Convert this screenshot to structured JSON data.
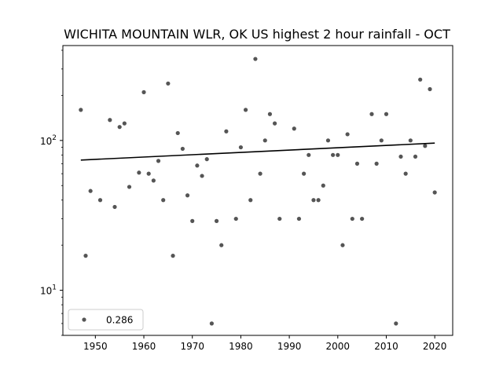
{
  "chart_data": {
    "type": "scatter",
    "title": "WICHITA MOUNTAIN WLR, OK US highest 2 hour rainfall - OCT",
    "xlabel": "",
    "ylabel": "",
    "x_ticks": [
      1950,
      1960,
      1970,
      1980,
      1990,
      2000,
      2010,
      2020
    ],
    "x_tick_labels": [
      "1950",
      "1960",
      "1970",
      "1980",
      "1990",
      "2000",
      "2010",
      "2020"
    ],
    "y_scale": "log",
    "y_ticks": [
      10,
      100
    ],
    "y_tick_labels": [
      "10^1",
      "10^2"
    ],
    "xlim": [
      1943.3,
      2023.7
    ],
    "ylim": [
      5,
      430
    ],
    "grid": false,
    "legend_position": "lower-left",
    "series": [
      {
        "name": "0.286",
        "color": "#555555",
        "x": [
          1947,
          1948,
          1949,
          1951,
          1953,
          1954,
          1955,
          1956,
          1957,
          1959,
          1960,
          1961,
          1962,
          1963,
          1964,
          1965,
          1966,
          1967,
          1968,
          1969,
          1970,
          1971,
          1972,
          1973,
          1974,
          1975,
          1976,
          1977,
          1979,
          1980,
          1981,
          1982,
          1983,
          1984,
          1985,
          1986,
          1987,
          1988,
          1991,
          1992,
          1993,
          1994,
          1995,
          1996,
          1997,
          1998,
          1999,
          2000,
          2001,
          2002,
          2003,
          2004,
          2005,
          2007,
          2008,
          2009,
          2010,
          2012,
          2013,
          2014,
          2015,
          2016,
          2017,
          2018,
          2019,
          2020
        ],
        "y": [
          160,
          17,
          46,
          40,
          137,
          36,
          123,
          130,
          49,
          61,
          210,
          60,
          54,
          73,
          40,
          240,
          17,
          112,
          88,
          43,
          29,
          68,
          58,
          75,
          6,
          29,
          20,
          115,
          30,
          90,
          160,
          40,
          350,
          60,
          100,
          150,
          130,
          30,
          120,
          30,
          60,
          80,
          40,
          40,
          50,
          100,
          80,
          80,
          20,
          110,
          30,
          70,
          30,
          150,
          70,
          100,
          150,
          6,
          78,
          60,
          100,
          78,
          255,
          92,
          220,
          45
        ]
      }
    ],
    "trend_line": {
      "x": [
        1947,
        2020
      ],
      "y": [
        74,
        96
      ],
      "color": "#000000"
    }
  }
}
